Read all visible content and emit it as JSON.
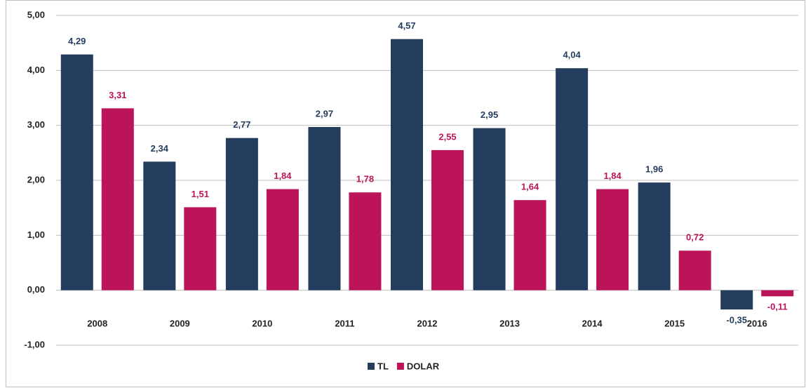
{
  "chart_data": {
    "type": "bar",
    "categories": [
      "2008",
      "2009",
      "2010",
      "2011",
      "2012",
      "2013",
      "2014",
      "2015",
      "2016"
    ],
    "series": [
      {
        "name": "TL",
        "color": "#243d5e",
        "values": [
          4.29,
          2.34,
          2.77,
          2.97,
          4.57,
          2.95,
          4.04,
          1.96,
          -0.35
        ],
        "value_labels": [
          "4,29",
          "2,34",
          "2,77",
          "2,97",
          "4,57",
          "2,95",
          "4,04",
          "1,96",
          "-0,35"
        ]
      },
      {
        "name": "DOLAR",
        "color": "#bb1459",
        "values": [
          3.31,
          1.51,
          1.84,
          1.78,
          2.55,
          1.64,
          1.84,
          0.72,
          -0.11
        ],
        "value_labels": [
          "3,31",
          "1,51",
          "1,84",
          "1,78",
          "2,55",
          "1,64",
          "1,84",
          "0,72",
          "-0,11"
        ]
      }
    ],
    "ylim": [
      -1,
      5
    ],
    "yticks": [
      {
        "value": -1,
        "label": "-1,00"
      },
      {
        "value": 0,
        "label": "0,00"
      },
      {
        "value": 1,
        "label": "1,00"
      },
      {
        "value": 2,
        "label": "2,00"
      },
      {
        "value": 3,
        "label": "3,00"
      },
      {
        "value": 4,
        "label": "4,00"
      },
      {
        "value": 5,
        "label": "5,00"
      }
    ],
    "grid": true,
    "legend": "bottom"
  }
}
